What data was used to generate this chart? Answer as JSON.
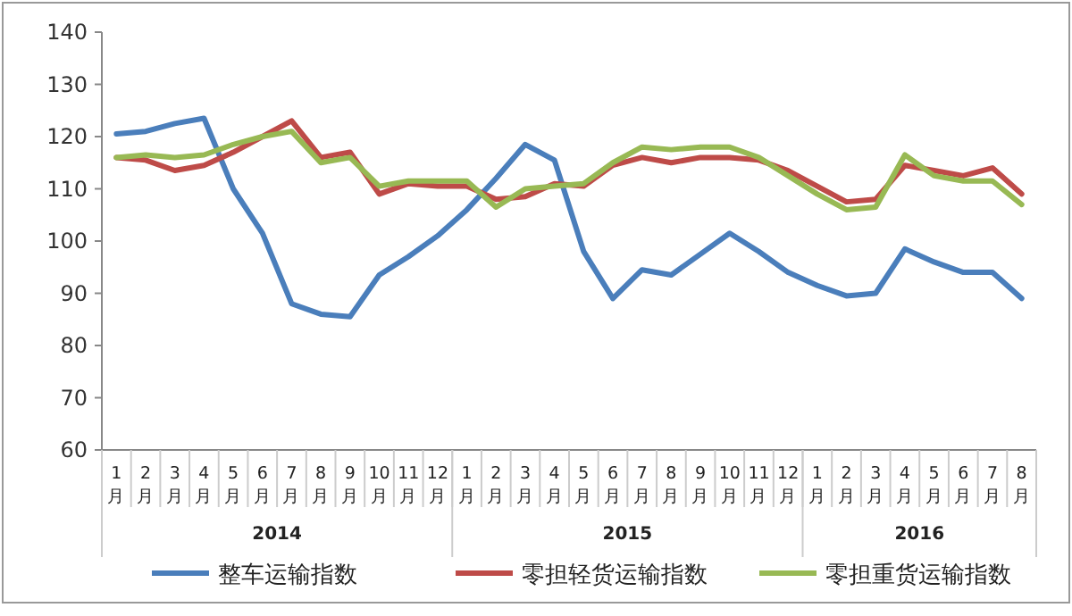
{
  "chart_data": {
    "type": "line",
    "categories": [
      "1月",
      "2月",
      "3月",
      "4月",
      "5月",
      "6月",
      "7月",
      "8月",
      "9月",
      "10月",
      "11月",
      "12月",
      "1月",
      "2月",
      "3月",
      "4月",
      "5月",
      "6月",
      "7月",
      "8月",
      "9月",
      "10月",
      "11月",
      "12月",
      "1月",
      "2月",
      "3月",
      "4月",
      "5月",
      "6月",
      "7月",
      "8月"
    ],
    "series": [
      {
        "name": "整车运输指数",
        "color": "#4a7ebb",
        "values": [
          120.5,
          121,
          122.5,
          123.5,
          110,
          101.5,
          88,
          86,
          85.5,
          93.5,
          97,
          101,
          106,
          112,
          118.5,
          115.5,
          98,
          89,
          94.5,
          93.5,
          97.5,
          101.5,
          98,
          94,
          91.5,
          89.5,
          90,
          98.5,
          96,
          94,
          94,
          89
        ]
      },
      {
        "name": "零担轻货运输指数",
        "color": "#be4b48",
        "values": [
          116,
          115.5,
          113.5,
          114.5,
          117,
          120,
          123,
          116,
          117,
          109,
          111,
          110.5,
          110.5,
          108,
          108.5,
          111,
          110.5,
          114.5,
          116,
          115,
          116,
          116,
          115.5,
          113.5,
          110.5,
          107.5,
          108,
          114.5,
          113.5,
          112.5,
          114,
          109
        ]
      },
      {
        "name": "零担重货运输指数",
        "color": "#98b954",
        "values": [
          116,
          116.5,
          116,
          116.5,
          118.5,
          120,
          121,
          115,
          116,
          110.5,
          111.5,
          111.5,
          111.5,
          106.5,
          110,
          110.5,
          111,
          115,
          118,
          117.5,
          118,
          118,
          116,
          112.5,
          109,
          106,
          106.5,
          116.5,
          112.5,
          111.5,
          111.5,
          107
        ]
      }
    ],
    "annotations": [
      "2014",
      "2015",
      "2016"
    ],
    "ylim": [
      60,
      140
    ],
    "yticks": [
      60,
      70,
      80,
      90,
      100,
      110,
      120,
      130,
      140
    ],
    "legend": "bottom",
    "marker": "none",
    "line_style": "solid",
    "grid": false
  }
}
